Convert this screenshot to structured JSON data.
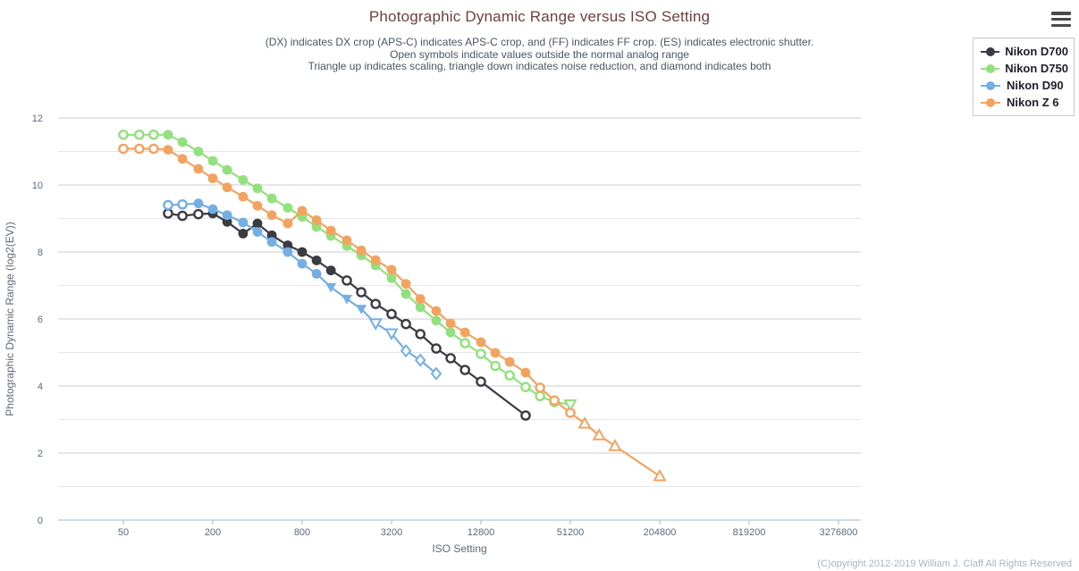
{
  "chart_data": {
    "type": "line",
    "title": "Photographic Dynamic Range versus ISO Setting",
    "subtitle_lines": [
      "(DX) indicates DX crop (APS-C) indicates APS-C crop, and (FF) indicates FF crop. (ES) indicates electronic shutter.",
      "Open symbols indicate values outside the normal analog range",
      "Triangle up indicates scaling, triangle down indicates noise reduction, and diamond indicates both"
    ],
    "xlabel": "ISO Setting",
    "ylabel": "Photographic Dynamic Range (log2(EV))",
    "x_scale": "log4",
    "x_ticks": [
      50,
      200,
      800,
      3200,
      12800,
      51200,
      204800,
      819200,
      3276800
    ],
    "y_ticks": [
      0,
      2,
      4,
      6,
      8,
      10,
      12
    ],
    "ylim": [
      0,
      12
    ],
    "xlim": [
      29,
      4700000
    ],
    "grid": "horizontal lines at every 1 EV, darker at even values",
    "legend_position": "top-right",
    "point_format": [
      "iso",
      "pdr",
      "marker: c=circle tu=triangle-up td=triangle-down d=diamond",
      "open: 1=open 0=filled"
    ],
    "series": [
      {
        "name": "Nikon D700",
        "color": "#3b3b42",
        "points": [
          [
            100,
            9.15,
            "c",
            1
          ],
          [
            125,
            9.08,
            "c",
            1
          ],
          [
            160,
            9.13,
            "c",
            1
          ],
          [
            200,
            9.15,
            "c",
            0
          ],
          [
            250,
            8.9,
            "c",
            0
          ],
          [
            320,
            8.55,
            "c",
            0
          ],
          [
            400,
            8.85,
            "c",
            0
          ],
          [
            500,
            8.5,
            "c",
            0
          ],
          [
            640,
            8.2,
            "c",
            0
          ],
          [
            800,
            8.0,
            "c",
            0
          ],
          [
            1000,
            7.75,
            "c",
            0
          ],
          [
            1250,
            7.45,
            "c",
            0
          ],
          [
            1600,
            7.15,
            "c",
            1
          ],
          [
            2000,
            6.8,
            "c",
            1
          ],
          [
            2500,
            6.45,
            "c",
            1
          ],
          [
            3200,
            6.15,
            "c",
            1
          ],
          [
            4000,
            5.85,
            "c",
            1
          ],
          [
            5000,
            5.55,
            "c",
            1
          ],
          [
            6400,
            5.12,
            "c",
            1
          ],
          [
            8000,
            4.83,
            "c",
            1
          ],
          [
            10000,
            4.48,
            "c",
            1
          ],
          [
            12800,
            4.13,
            "c",
            1
          ],
          [
            25600,
            3.12,
            "c",
            1
          ]
        ]
      },
      {
        "name": "Nikon D750",
        "color": "#92e07e",
        "points": [
          [
            50,
            11.5,
            "c",
            1
          ],
          [
            64,
            11.5,
            "c",
            1
          ],
          [
            80,
            11.5,
            "c",
            1
          ],
          [
            100,
            11.5,
            "c",
            0
          ],
          [
            125,
            11.28,
            "c",
            0
          ],
          [
            160,
            11.0,
            "c",
            0
          ],
          [
            200,
            10.72,
            "c",
            0
          ],
          [
            250,
            10.45,
            "c",
            0
          ],
          [
            320,
            10.15,
            "c",
            0
          ],
          [
            400,
            9.9,
            "c",
            0
          ],
          [
            500,
            9.6,
            "c",
            0
          ],
          [
            640,
            9.32,
            "c",
            0
          ],
          [
            800,
            9.05,
            "c",
            0
          ],
          [
            1000,
            8.75,
            "c",
            0
          ],
          [
            1250,
            8.48,
            "c",
            0
          ],
          [
            1600,
            8.18,
            "c",
            0
          ],
          [
            2000,
            7.9,
            "c",
            0
          ],
          [
            2500,
            7.6,
            "c",
            0
          ],
          [
            3200,
            7.22,
            "c",
            0
          ],
          [
            4000,
            6.75,
            "c",
            0
          ],
          [
            5000,
            6.35,
            "c",
            0
          ],
          [
            6400,
            5.95,
            "c",
            0
          ],
          [
            8000,
            5.6,
            "c",
            0
          ],
          [
            10000,
            5.28,
            "c",
            1
          ],
          [
            12800,
            4.96,
            "c",
            1
          ],
          [
            16000,
            4.6,
            "c",
            1
          ],
          [
            20000,
            4.32,
            "c",
            1
          ],
          [
            25600,
            3.97,
            "c",
            1
          ],
          [
            32000,
            3.7,
            "c",
            1
          ],
          [
            40000,
            3.52,
            "c",
            1
          ],
          [
            51200,
            3.45,
            "td",
            1
          ]
        ]
      },
      {
        "name": "Nikon D90",
        "color": "#74afe4",
        "points": [
          [
            100,
            9.4,
            "c",
            1
          ],
          [
            125,
            9.42,
            "c",
            1
          ],
          [
            160,
            9.45,
            "c",
            0
          ],
          [
            200,
            9.28,
            "c",
            0
          ],
          [
            250,
            9.1,
            "c",
            0
          ],
          [
            320,
            8.88,
            "c",
            0
          ],
          [
            400,
            8.6,
            "c",
            0
          ],
          [
            500,
            8.3,
            "c",
            0
          ],
          [
            640,
            8.0,
            "c",
            0
          ],
          [
            800,
            7.65,
            "c",
            0
          ],
          [
            1000,
            7.35,
            "c",
            0
          ],
          [
            1250,
            6.95,
            "td",
            0
          ],
          [
            1600,
            6.6,
            "td",
            0
          ],
          [
            2000,
            6.3,
            "td",
            0
          ],
          [
            2500,
            5.87,
            "td",
            1
          ],
          [
            3200,
            5.57,
            "td",
            1
          ],
          [
            4000,
            5.05,
            "d",
            1
          ],
          [
            5000,
            4.77,
            "d",
            1
          ],
          [
            6400,
            4.37,
            "d",
            1
          ]
        ]
      },
      {
        "name": "Nikon Z 6",
        "color": "#f3a360",
        "points": [
          [
            50,
            11.08,
            "c",
            1
          ],
          [
            64,
            11.08,
            "c",
            1
          ],
          [
            80,
            11.08,
            "c",
            1
          ],
          [
            100,
            11.05,
            "c",
            0
          ],
          [
            125,
            10.78,
            "c",
            0
          ],
          [
            160,
            10.48,
            "c",
            0
          ],
          [
            200,
            10.2,
            "c",
            0
          ],
          [
            250,
            9.93,
            "c",
            0
          ],
          [
            320,
            9.65,
            "c",
            0
          ],
          [
            400,
            9.38,
            "c",
            0
          ],
          [
            500,
            9.1,
            "c",
            0
          ],
          [
            640,
            8.85,
            "c",
            0
          ],
          [
            800,
            9.23,
            "c",
            0
          ],
          [
            1000,
            8.95,
            "c",
            0
          ],
          [
            1250,
            8.64,
            "c",
            0
          ],
          [
            1600,
            8.35,
            "c",
            0
          ],
          [
            2000,
            8.05,
            "c",
            0
          ],
          [
            2500,
            7.76,
            "c",
            0
          ],
          [
            3200,
            7.47,
            "c",
            0
          ],
          [
            4000,
            7.05,
            "c",
            0
          ],
          [
            5000,
            6.6,
            "c",
            0
          ],
          [
            6400,
            6.24,
            "c",
            0
          ],
          [
            8000,
            5.87,
            "c",
            0
          ],
          [
            10000,
            5.6,
            "c",
            0
          ],
          [
            12800,
            5.31,
            "c",
            0
          ],
          [
            16000,
            4.99,
            "c",
            0
          ],
          [
            20000,
            4.72,
            "c",
            0
          ],
          [
            25600,
            4.4,
            "c",
            0
          ],
          [
            32000,
            3.95,
            "c",
            1
          ],
          [
            40000,
            3.57,
            "c",
            1
          ],
          [
            51200,
            3.2,
            "c",
            1
          ],
          [
            64000,
            2.88,
            "tu",
            1
          ],
          [
            80000,
            2.53,
            "tu",
            1
          ],
          [
            102400,
            2.21,
            "tu",
            1
          ],
          [
            204800,
            1.31,
            "tu",
            1
          ]
        ]
      }
    ]
  },
  "footer": {
    "copyright": "(C)opyright 2012-2019 William J. Claff All Rights Reserved"
  },
  "controls": {
    "menu_icon": "hamburger-menu"
  },
  "style_colors": {
    "title": "#6e4040",
    "subtitle": "#4a5560",
    "tick_labels": "#5b6b7c",
    "axis_line": "#c2cdd8",
    "grid_major": "#c9cdd2",
    "grid_minor": "#e3e5e7",
    "copyright": "#a9b3c2"
  }
}
